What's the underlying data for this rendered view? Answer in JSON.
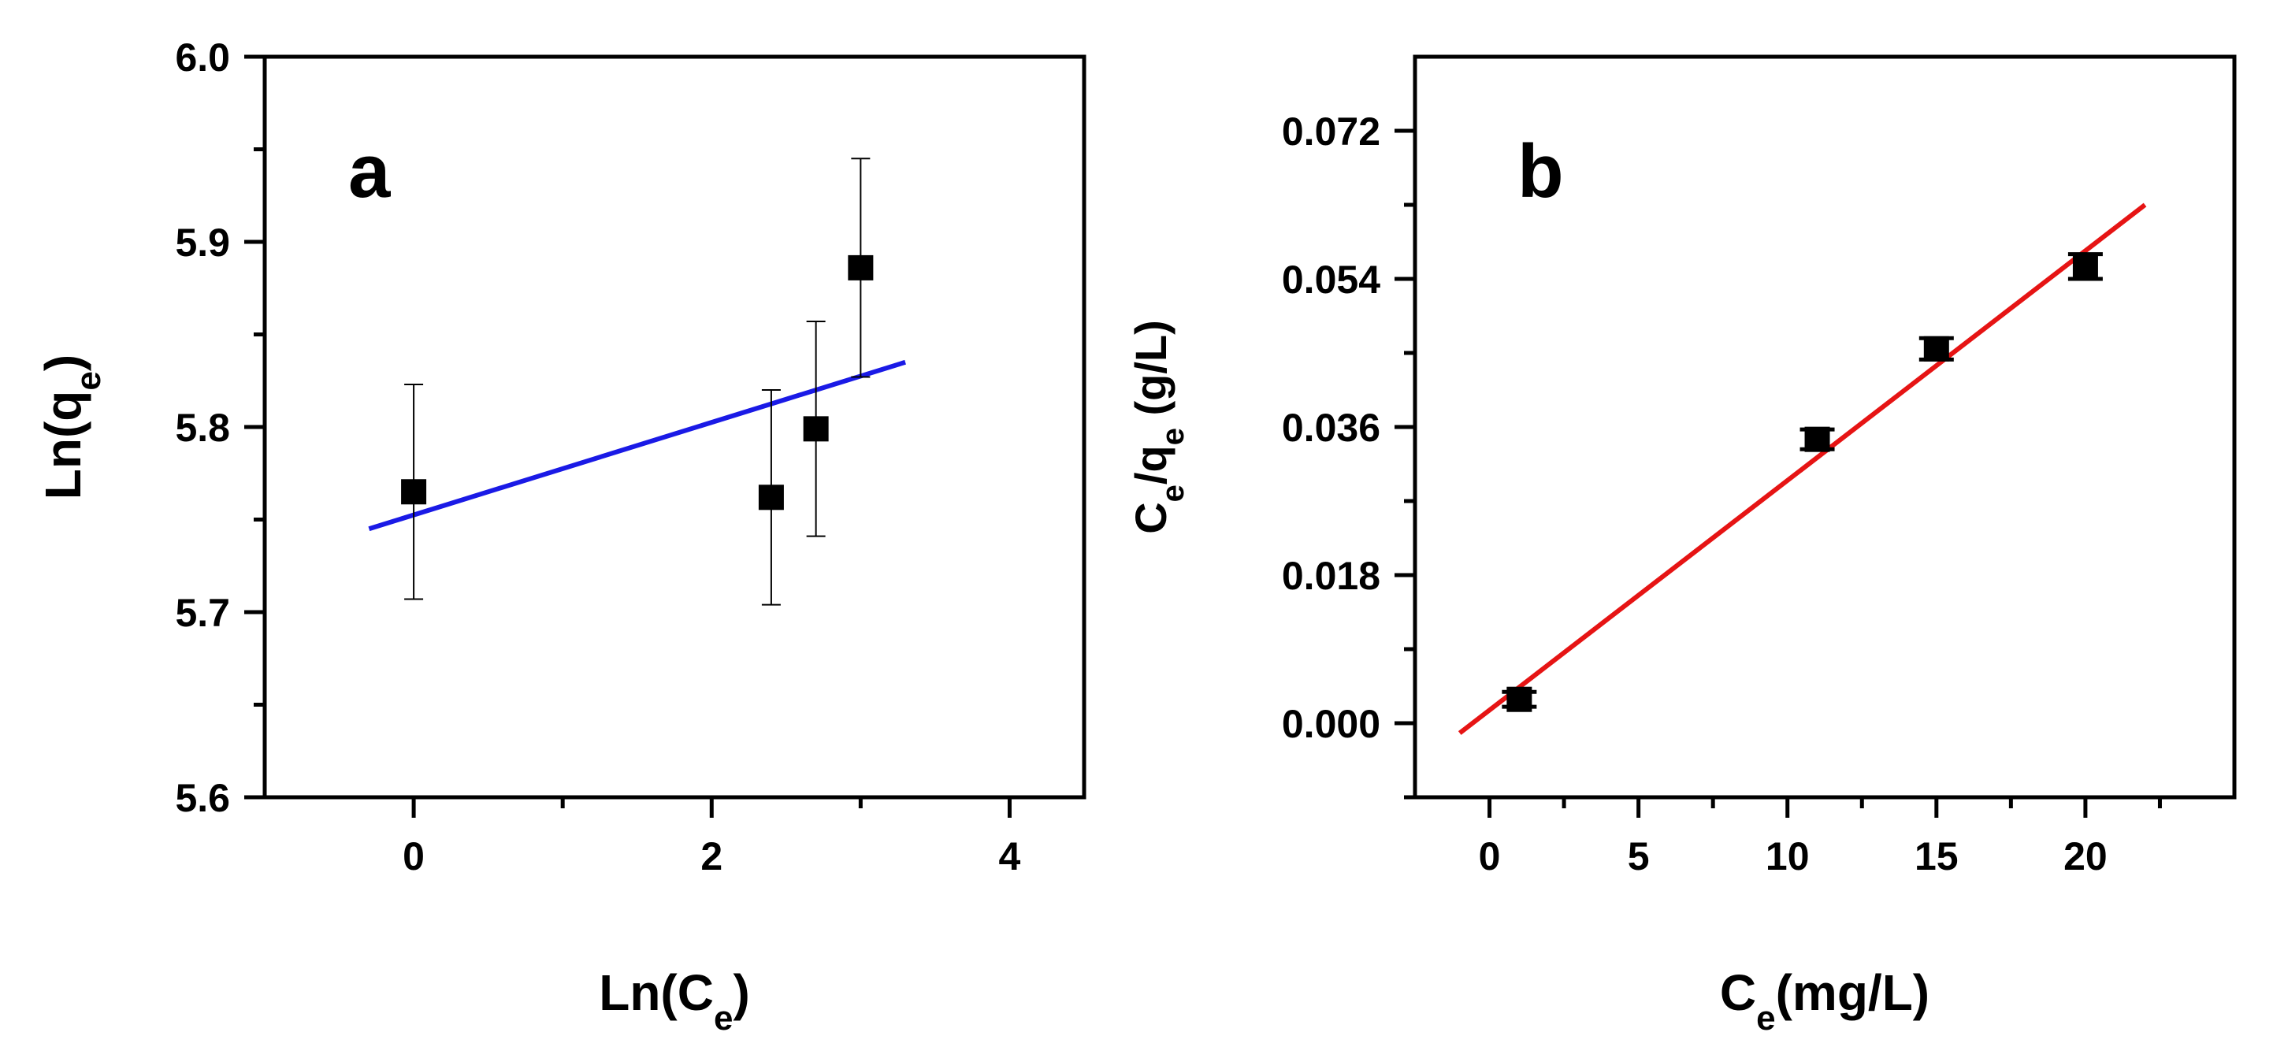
{
  "chart_data": [
    {
      "type": "scatter",
      "panel_label": "a",
      "xlabel": "Ln(C",
      "xlabel_sub": "e",
      "xlabel_end": ")",
      "ylabel": "Ln(q",
      "ylabel_sub": "e",
      "ylabel_end": ")",
      "xlim": [
        -1,
        4.5
      ],
      "ylim": [
        5.6,
        6.0
      ],
      "xticks": [
        0,
        2,
        4
      ],
      "xtick_labels": [
        "0",
        "2",
        "4"
      ],
      "xminor": [
        1,
        3
      ],
      "yticks": [
        5.6,
        5.7,
        5.8,
        5.9,
        6.0
      ],
      "ytick_labels": [
        "5.6",
        "5.7",
        "5.8",
        "5.9",
        "6.0"
      ],
      "yminor": [
        5.65,
        5.75,
        5.85,
        5.95
      ],
      "points": [
        {
          "x": 0.0,
          "y": 5.765,
          "err": 0.058
        },
        {
          "x": 2.4,
          "y": 5.762,
          "err": 0.058
        },
        {
          "x": 2.7,
          "y": 5.799,
          "err": 0.058
        },
        {
          "x": 3.0,
          "y": 5.886,
          "err": 0.059
        }
      ],
      "fit_line": {
        "x": [
          -0.3,
          3.3
        ],
        "y": [
          5.745,
          5.835
        ],
        "color": "#1a1ae6"
      },
      "marker_color": "#000000"
    },
    {
      "type": "scatter",
      "panel_label": "b",
      "xlabel": "C",
      "xlabel_sub": "e",
      "xlabel_end": "(mg/L)",
      "ylabel": "C",
      "ylabel_sub": "e",
      "ylabel_mid": "/q",
      "ylabel_sub2": "e",
      "ylabel_end": " (g/L)",
      "xlim": [
        -2.5,
        25
      ],
      "ylim": [
        -0.009,
        0.081
      ],
      "xticks": [
        0,
        5,
        10,
        15,
        20
      ],
      "xtick_labels": [
        "0",
        "5",
        "10",
        "15",
        "20"
      ],
      "xminor": [
        2.5,
        7.5,
        12.5,
        17.5,
        22.5
      ],
      "yticks": [
        0.0,
        0.018,
        0.036,
        0.054,
        0.072
      ],
      "ytick_labels": [
        "0.000",
        "0.018",
        "0.036",
        "0.054",
        "0.072"
      ],
      "yminor": [
        -0.009,
        0.009,
        0.027,
        0.045,
        0.063
      ],
      "points": [
        {
          "x": 1,
          "y": 0.0029,
          "err": 0.0009
        },
        {
          "x": 11,
          "y": 0.0345,
          "err": 0.0012
        },
        {
          "x": 15,
          "y": 0.0455,
          "err": 0.0013
        },
        {
          "x": 20,
          "y": 0.0555,
          "err": 0.0015
        }
      ],
      "fit_line": {
        "x": [
          -1,
          22
        ],
        "y": [
          -0.0012,
          0.063
        ],
        "color": "#e61414"
      },
      "marker_color": "#000000"
    }
  ]
}
